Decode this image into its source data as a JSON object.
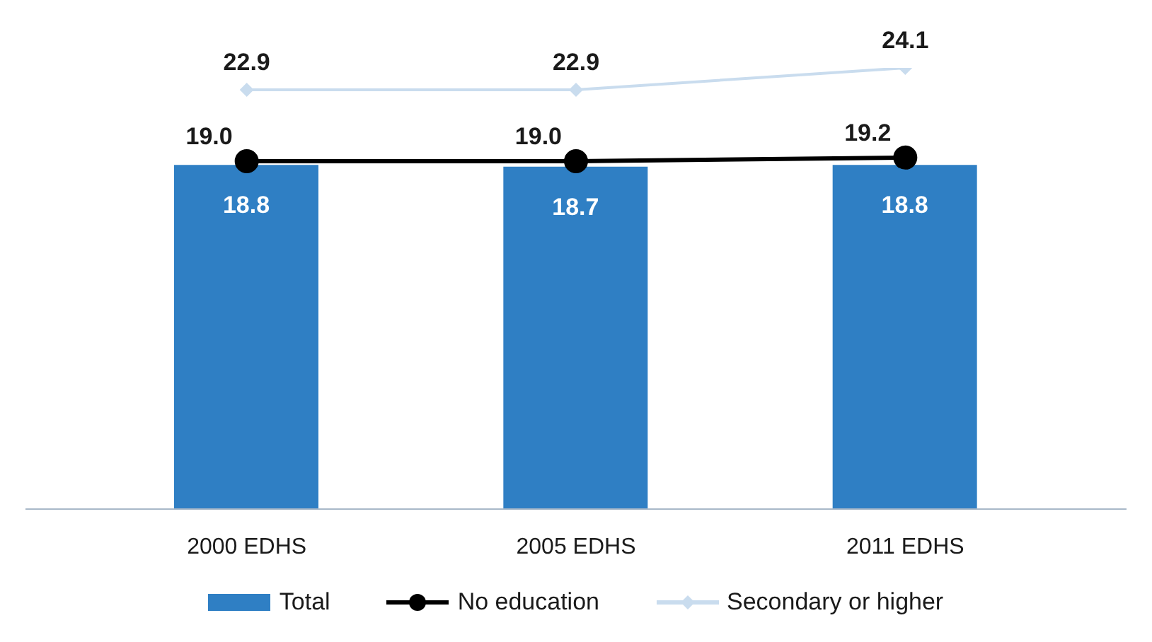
{
  "chart_data": {
    "type": "bar",
    "categories": [
      "2000 EDHS",
      "2005 EDHS",
      "2011 EDHS"
    ],
    "series": [
      {
        "name": "Total",
        "color": "#2f7fc4",
        "values": [
          18.8,
          18.7,
          18.8
        ]
      },
      {
        "name": "No education",
        "type": "line",
        "color": "#000000",
        "marker": "circle",
        "values": [
          19.0,
          19.0,
          19.2
        ],
        "value_labels": [
          "19.0",
          "19.0",
          "19.2"
        ]
      },
      {
        "name": "Secondary or higher",
        "type": "line",
        "color": "#c9dcee",
        "marker": "diamond",
        "values": [
          22.9,
          22.9,
          24.1
        ]
      }
    ],
    "tick_labels": "x",
    "data_labels": true,
    "legend": "bottom",
    "grid": false
  }
}
